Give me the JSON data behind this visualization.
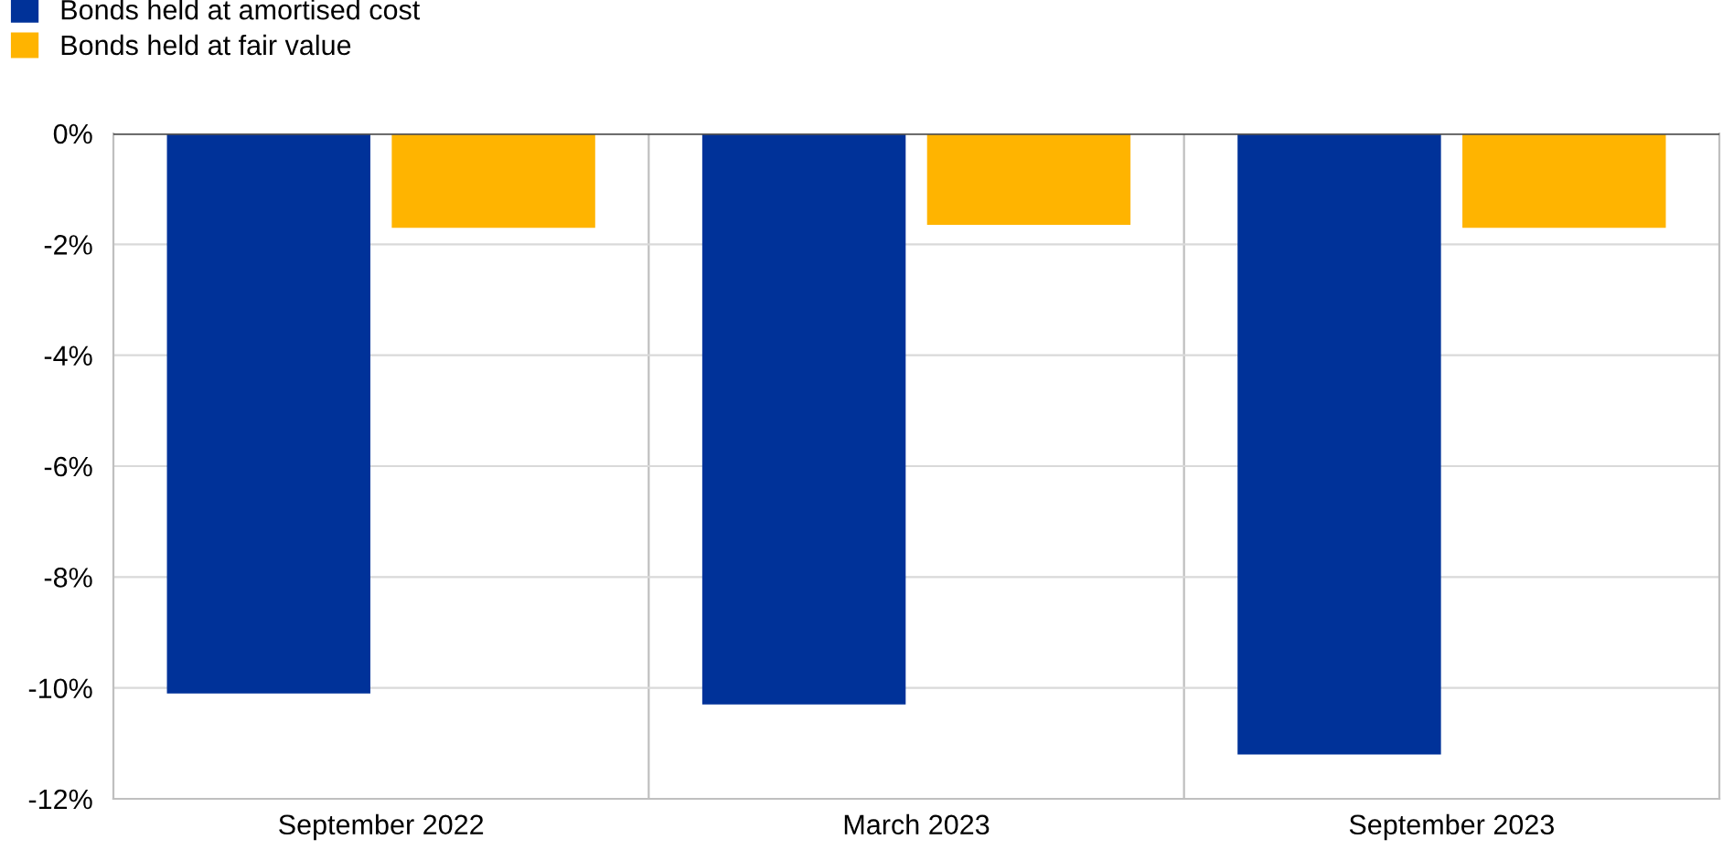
{
  "chart_data": {
    "type": "bar",
    "categories": [
      "September 2022",
      "March 2023",
      "September 2023"
    ],
    "series": [
      {
        "name": "Bonds held at amortised cost",
        "color": "#003299",
        "values": [
          -10.1,
          -10.3,
          -11.2
        ]
      },
      {
        "name": "Bonds held at fair value",
        "color": "#ffb400",
        "values": [
          -1.7,
          -1.65,
          -1.7
        ]
      }
    ],
    "ylim": [
      -12,
      0
    ],
    "yticks": [
      {
        "value": 0,
        "label": "0%"
      },
      {
        "value": -2,
        "label": "-2%"
      },
      {
        "value": -4,
        "label": "-4%"
      },
      {
        "value": -6,
        "label": "-6%"
      },
      {
        "value": -8,
        "label": "-8%"
      },
      {
        "value": -10,
        "label": "-10%"
      },
      {
        "value": -12,
        "label": "-12%"
      }
    ],
    "grid": true,
    "legend": "top left"
  }
}
